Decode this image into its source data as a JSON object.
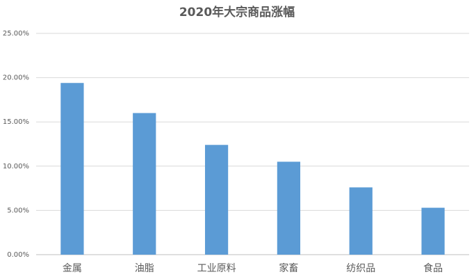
{
  "chart_data": {
    "type": "bar",
    "title": "2020年大宗商品涨幅",
    "categories": [
      "金属",
      "油脂",
      "工业原料",
      "家畜",
      "纺织品",
      "食品"
    ],
    "values": [
      19.4,
      16.0,
      12.4,
      10.5,
      7.6,
      5.3
    ],
    "color": "#5b9bd5",
    "ylim": [
      0,
      25
    ],
    "yticks": [
      {
        "value": 0,
        "label": "0.00%"
      },
      {
        "value": 5,
        "label": "5.00%"
      },
      {
        "value": 10,
        "label": "10.00%"
      },
      {
        "value": 15,
        "label": "15.00%"
      },
      {
        "value": 20,
        "label": "20.00%"
      },
      {
        "value": 25,
        "label": "25.00%"
      }
    ],
    "grid": true
  }
}
